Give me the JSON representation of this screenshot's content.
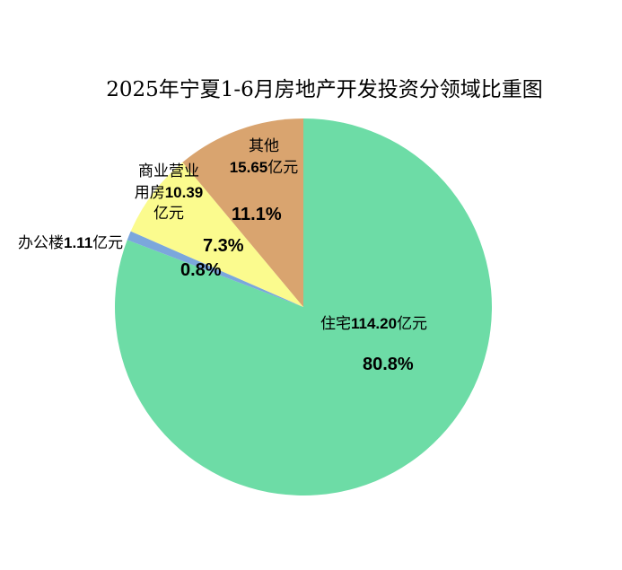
{
  "chart_data": {
    "type": "pie",
    "title": "2025年宁夏1-6月房地产开发投资分领域比重图",
    "categories": [
      "住宅",
      "办公楼",
      "商业营业用房",
      "其他"
    ],
    "values": [
      114.2,
      1.11,
      10.39,
      15.65
    ],
    "value_labels": [
      "114.20",
      "1.11",
      "10.39",
      "15.65"
    ],
    "unit": "亿元",
    "percent_labels": [
      "80.8%",
      "0.8%",
      "7.3%",
      "11.1%"
    ],
    "colors": [
      "#6ddca6",
      "#7ba7dc",
      "#fbfb8e",
      "#d9a46f"
    ]
  }
}
